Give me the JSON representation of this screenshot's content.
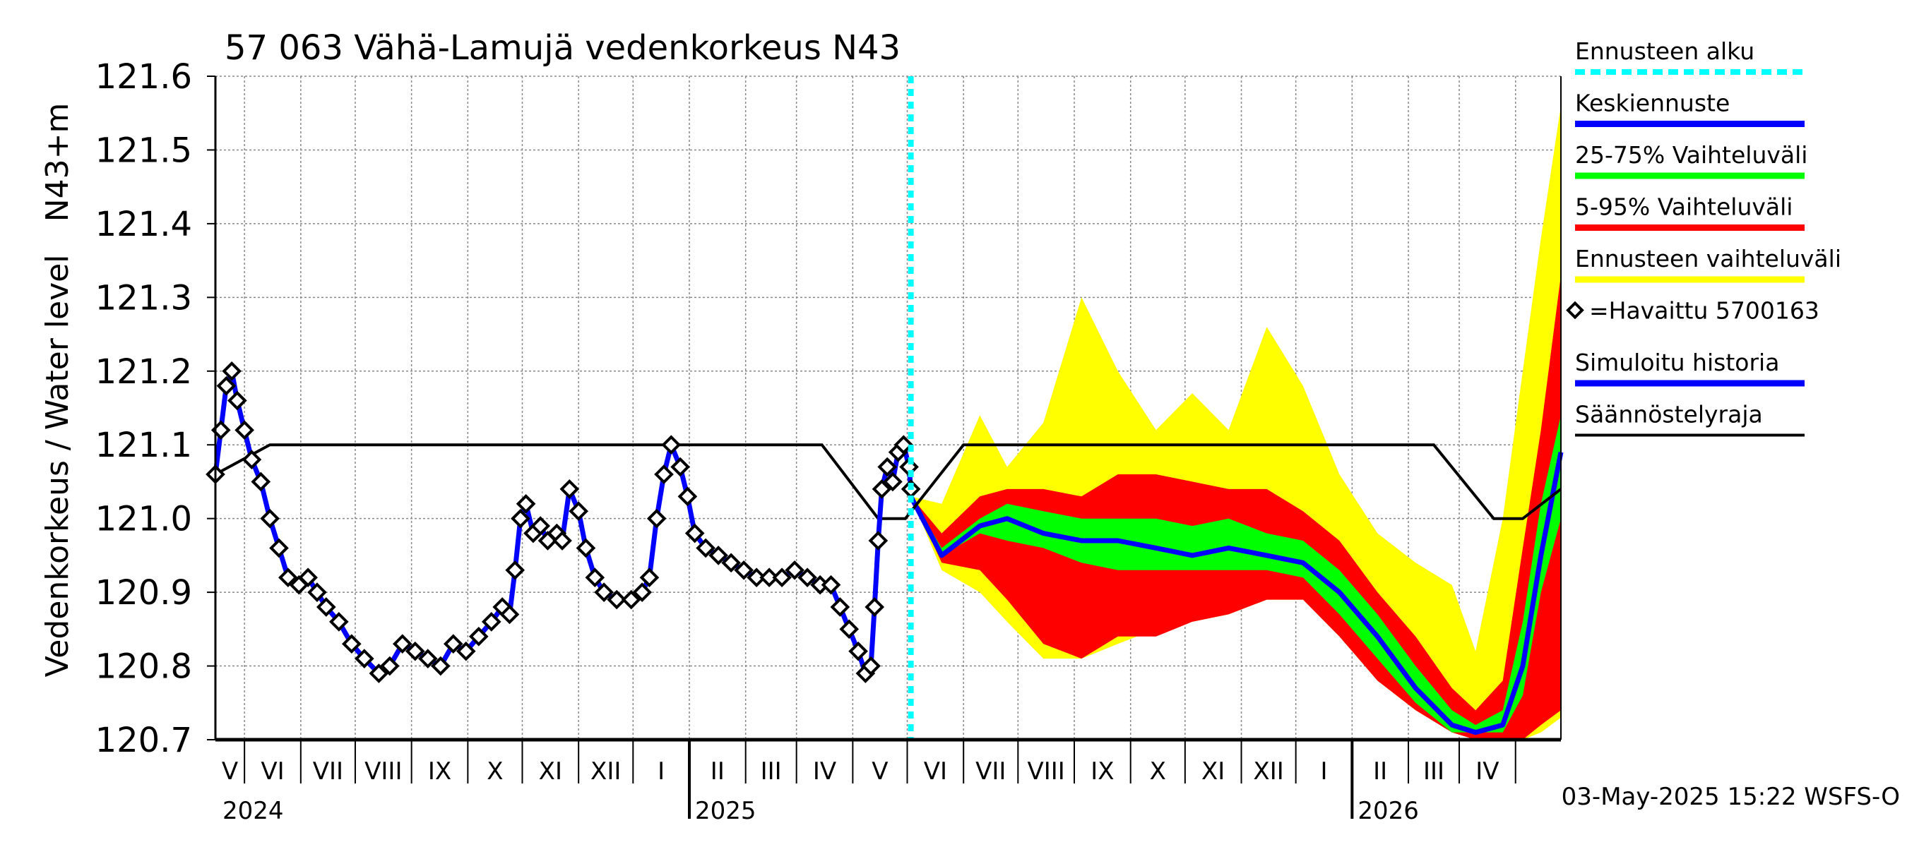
{
  "chart_data": {
    "type": "area",
    "title": "57 063 Vähä-Lamujä vedenkorkeus N43",
    "ylabel_main": "Vedenkorkeus / Water level",
    "ylabel_unit": "N43+m",
    "ylim": [
      120.7,
      121.6
    ],
    "y_ticks": [
      "121.6",
      "121.5",
      "121.4",
      "121.3",
      "121.2",
      "121.1",
      "121.0",
      "120.9",
      "120.8",
      "120.7"
    ],
    "x_start": "2024-04-15",
    "x_end": "2026-04-26",
    "forecast_start": "2025-05-03",
    "months": [
      "V",
      "VI",
      "VII",
      "VIII",
      "IX",
      "X",
      "XI",
      "XII",
      "I",
      "II",
      "III",
      "IV",
      "V",
      "VI",
      "VII",
      "VIII",
      "IX",
      "X",
      "XI",
      "XII",
      "I",
      "II",
      "III",
      "IV"
    ],
    "years": [
      "2024",
      "2025",
      "2026"
    ],
    "grid": true,
    "timestamp": "03-May-2025 15:22 WSFS-O",
    "legend": [
      {
        "label": "Ennusteen alku",
        "color": "#00ffff",
        "style": "dashed"
      },
      {
        "label": "Keskiennuste",
        "color": "#0000ff",
        "style": "solid"
      },
      {
        "label": "25-75% Vaihteluväli",
        "color": "#00ff00",
        "style": "solid"
      },
      {
        "label": "5-95% Vaihteluväli",
        "color": "#ff0000",
        "style": "solid"
      },
      {
        "label": "Ennusteen vaihteluväli",
        "color": "#ffff00",
        "style": "solid"
      },
      {
        "label": "=Havaittu 5700163",
        "color": "#000000",
        "style": "marker"
      },
      {
        "label": "Simuloitu historia",
        "color": "#0000ff",
        "style": "solid"
      },
      {
        "label": "Säännöstelyraja",
        "color": "#000000",
        "style": "solid"
      }
    ],
    "regulation_limit": [
      [
        "2024-04-15",
        121.06
      ],
      [
        "2024-05-15",
        121.1
      ],
      [
        "2025-03-15",
        121.1
      ],
      [
        "2025-04-15",
        121.0
      ],
      [
        "2025-04-30",
        121.0
      ],
      [
        "2025-06-01",
        121.1
      ],
      [
        "2026-02-15",
        121.1
      ],
      [
        "2026-03-20",
        121.0
      ],
      [
        "2026-04-05",
        121.0
      ],
      [
        "2026-04-26",
        121.04
      ]
    ],
    "observed": [
      [
        "2024-04-15",
        121.06
      ],
      [
        "2024-04-18",
        121.12
      ],
      [
        "2024-04-21",
        121.18
      ],
      [
        "2024-04-24",
        121.2
      ],
      [
        "2024-04-27",
        121.16
      ],
      [
        "2024-05-01",
        121.12
      ],
      [
        "2024-05-05",
        121.08
      ],
      [
        "2024-05-10",
        121.05
      ],
      [
        "2024-05-15",
        121.0
      ],
      [
        "2024-05-20",
        120.96
      ],
      [
        "2024-05-25",
        120.92
      ],
      [
        "2024-05-31",
        120.91
      ],
      [
        "2024-06-05",
        120.92
      ],
      [
        "2024-06-10",
        120.9
      ],
      [
        "2024-06-15",
        120.88
      ],
      [
        "2024-06-22",
        120.86
      ],
      [
        "2024-06-29",
        120.83
      ],
      [
        "2024-07-06",
        120.81
      ],
      [
        "2024-07-14",
        120.79
      ],
      [
        "2024-07-20",
        120.8
      ],
      [
        "2024-07-27",
        120.83
      ],
      [
        "2024-08-03",
        120.82
      ],
      [
        "2024-08-10",
        120.81
      ],
      [
        "2024-08-17",
        120.8
      ],
      [
        "2024-08-24",
        120.83
      ],
      [
        "2024-08-31",
        120.82
      ],
      [
        "2024-09-07",
        120.84
      ],
      [
        "2024-09-14",
        120.86
      ],
      [
        "2024-09-20",
        120.88
      ],
      [
        "2024-09-24",
        120.87
      ],
      [
        "2024-09-27",
        120.93
      ],
      [
        "2024-09-30",
        121.0
      ],
      [
        "2024-10-03",
        121.02
      ],
      [
        "2024-10-07",
        120.98
      ],
      [
        "2024-10-11",
        120.99
      ],
      [
        "2024-10-15",
        120.97
      ],
      [
        "2024-10-20",
        120.98
      ],
      [
        "2024-10-23",
        120.97
      ],
      [
        "2024-10-27",
        121.04
      ],
      [
        "2024-11-01",
        121.01
      ],
      [
        "2024-11-05",
        120.96
      ],
      [
        "2024-11-10",
        120.92
      ],
      [
        "2024-11-15",
        120.9
      ],
      [
        "2024-11-22",
        120.89
      ],
      [
        "2024-11-30",
        120.89
      ],
      [
        "2024-12-06",
        120.9
      ],
      [
        "2024-12-10",
        120.92
      ],
      [
        "2024-12-14",
        121.0
      ],
      [
        "2024-12-18",
        121.06
      ],
      [
        "2024-12-22",
        121.1
      ],
      [
        "2024-12-27",
        121.07
      ],
      [
        "2024-12-31",
        121.03
      ],
      [
        "2025-01-04",
        120.98
      ],
      [
        "2025-01-10",
        120.96
      ],
      [
        "2025-01-17",
        120.95
      ],
      [
        "2025-01-24",
        120.94
      ],
      [
        "2025-01-31",
        120.93
      ],
      [
        "2025-02-07",
        120.92
      ],
      [
        "2025-02-14",
        120.92
      ],
      [
        "2025-02-21",
        120.92
      ],
      [
        "2025-02-28",
        120.93
      ],
      [
        "2025-03-07",
        120.92
      ],
      [
        "2025-03-14",
        120.91
      ],
      [
        "2025-03-20",
        120.91
      ],
      [
        "2025-03-25",
        120.88
      ],
      [
        "2025-03-30",
        120.85
      ],
      [
        "2025-04-04",
        120.82
      ],
      [
        "2025-04-08",
        120.79
      ],
      [
        "2025-04-11",
        120.8
      ],
      [
        "2025-04-13",
        120.88
      ],
      [
        "2025-04-15",
        120.97
      ],
      [
        "2025-04-17",
        121.04
      ],
      [
        "2025-04-20",
        121.07
      ],
      [
        "2025-04-23",
        121.05
      ],
      [
        "2025-04-26",
        121.09
      ],
      [
        "2025-04-29",
        121.1
      ],
      [
        "2025-05-02",
        121.07
      ],
      [
        "2025-05-03",
        121.04
      ]
    ],
    "forecast_dates": [
      "2025-05-03",
      "2025-05-20",
      "2025-06-10",
      "2025-06-25",
      "2025-07-15",
      "2025-08-05",
      "2025-08-25",
      "2025-09-15",
      "2025-10-05",
      "2025-10-25",
      "2025-11-15",
      "2025-12-05",
      "2025-12-25",
      "2026-01-15",
      "2026-02-05",
      "2026-02-25",
      "2026-03-10",
      "2026-03-25",
      "2026-04-05",
      "2026-04-15",
      "2026-04-26"
    ],
    "forecast_median": [
      121.03,
      120.95,
      120.99,
      121.0,
      120.98,
      120.97,
      120.97,
      120.96,
      120.95,
      120.96,
      120.95,
      120.94,
      120.9,
      120.84,
      120.77,
      120.72,
      120.71,
      120.72,
      120.8,
      120.95,
      121.09
    ],
    "forecast_25": [
      121.03,
      120.95,
      120.98,
      120.97,
      120.96,
      120.94,
      120.93,
      120.93,
      120.93,
      120.93,
      120.93,
      120.92,
      120.87,
      120.81,
      120.75,
      120.71,
      120.71,
      120.71,
      120.76,
      120.9,
      121.0
    ],
    "forecast_75": [
      121.03,
      120.96,
      121.0,
      121.02,
      121.01,
      121.0,
      121.0,
      121.0,
      120.99,
      121.0,
      120.98,
      120.97,
      120.93,
      120.87,
      120.8,
      120.74,
      120.72,
      120.74,
      120.86,
      121.02,
      121.14
    ],
    "forecast_5": [
      121.03,
      120.94,
      120.93,
      120.89,
      120.83,
      120.81,
      120.84,
      120.84,
      120.86,
      120.87,
      120.89,
      120.89,
      120.84,
      120.78,
      120.74,
      120.71,
      120.7,
      120.7,
      120.7,
      120.72,
      120.74
    ],
    "forecast_95": [
      121.03,
      120.98,
      121.03,
      121.04,
      121.04,
      121.03,
      121.06,
      121.06,
      121.05,
      121.04,
      121.04,
      121.01,
      120.97,
      120.9,
      120.84,
      120.77,
      120.74,
      120.78,
      120.96,
      121.12,
      121.33
    ],
    "forecast_min": [
      121.03,
      120.93,
      120.9,
      120.86,
      120.81,
      120.81,
      120.83,
      120.85,
      120.86,
      120.87,
      120.89,
      120.89,
      120.84,
      120.78,
      120.74,
      120.71,
      120.7,
      120.7,
      120.7,
      120.71,
      120.73
    ],
    "forecast_max": [
      121.03,
      121.02,
      121.14,
      121.07,
      121.13,
      121.3,
      121.2,
      121.12,
      121.17,
      121.12,
      121.26,
      121.18,
      121.06,
      120.98,
      120.94,
      120.91,
      120.82,
      121.0,
      121.2,
      121.38,
      121.56
    ]
  }
}
